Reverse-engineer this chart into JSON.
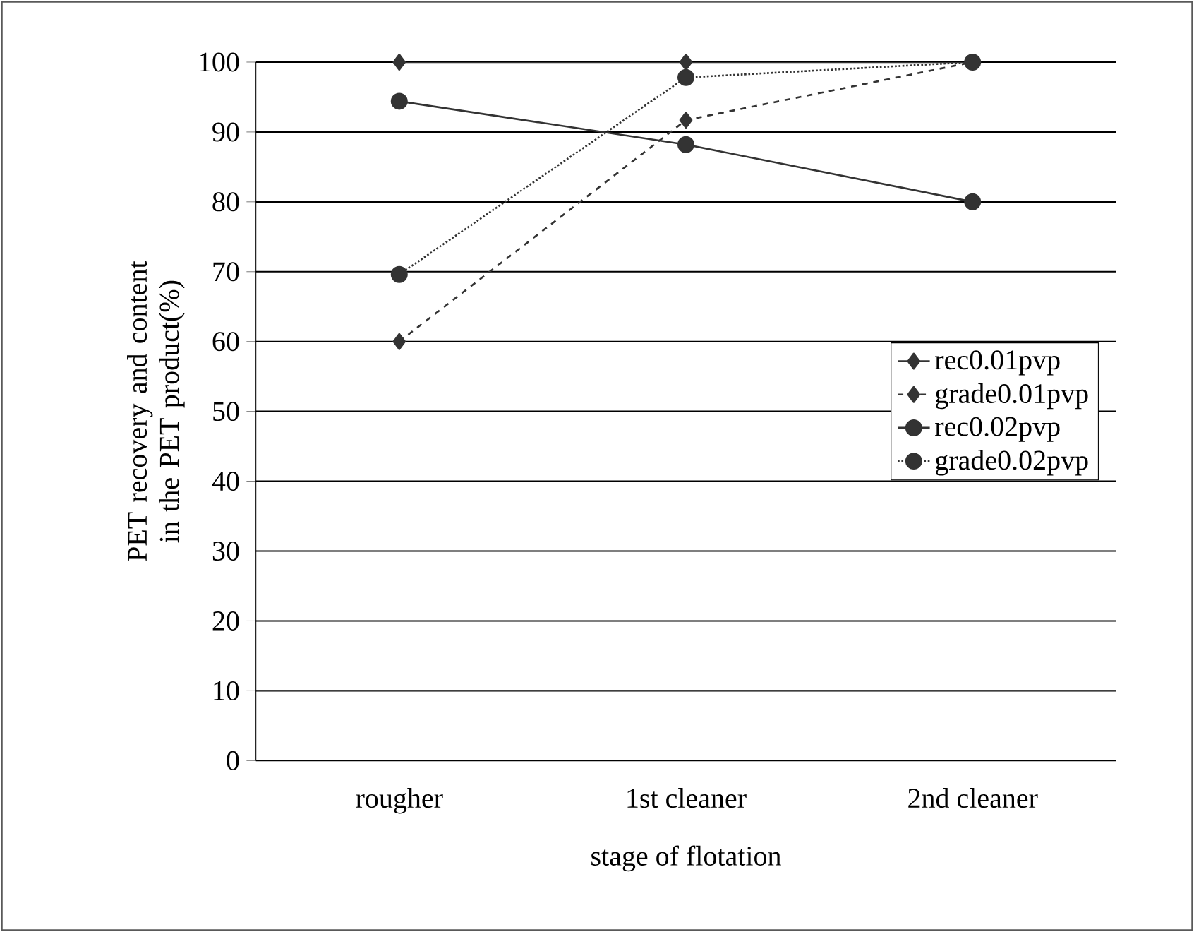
{
  "chart_data": {
    "type": "line",
    "xlabel": "stage of flotation",
    "ylabel": "PET recovery and content in the PET product(%)",
    "categories": [
      "rougher",
      "1st cleaner",
      "2nd cleaner"
    ],
    "series": [
      {
        "name": "rec0.01pvp",
        "color": "#333333",
        "marker": "diamond",
        "line_style": "solid",
        "values": [
          100,
          100,
          100
        ]
      },
      {
        "name": "grade0.01pvp",
        "color": "#333333",
        "marker": "diamond",
        "line_style": "dashed",
        "values": [
          60,
          91.7,
          100
        ]
      },
      {
        "name": "rec0.02pvp",
        "color": "#333333",
        "marker": "circle",
        "line_style": "solid",
        "values": [
          94.4,
          88.2,
          80
        ]
      },
      {
        "name": "grade0.02pvp",
        "color": "#333333",
        "marker": "circle",
        "line_style": "dotted",
        "values": [
          69.6,
          97.8,
          100
        ]
      }
    ],
    "ylim": [
      0,
      100
    ],
    "yticks": [
      0,
      10,
      20,
      30,
      40,
      50,
      60,
      70,
      80,
      90,
      100
    ],
    "grid": "y",
    "legend": "right"
  }
}
